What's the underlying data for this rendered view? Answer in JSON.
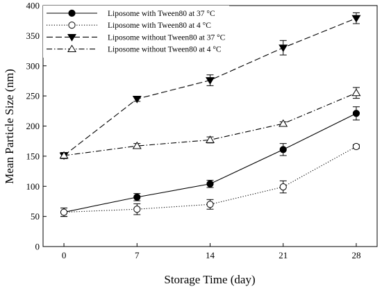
{
  "chart_data": {
    "type": "line",
    "xlabel": "Storage Time (day)",
    "ylabel": "Mean Particle Size (nm)",
    "xlim": [
      -2,
      30
    ],
    "ylim": [
      0,
      400
    ],
    "x_ticks": [
      0,
      7,
      14,
      21,
      28
    ],
    "y_ticks": [
      0,
      50,
      100,
      150,
      200,
      250,
      300,
      350,
      400
    ],
    "legend_position": "top-left",
    "grid": false,
    "series": [
      {
        "name": "Liposome with Tween80 at 37 °C",
        "marker": "filled-circle",
        "line_style": "solid",
        "x": [
          0,
          7,
          14,
          21,
          28
        ],
        "y": [
          57,
          82,
          104,
          161,
          221
        ],
        "error": [
          7,
          6,
          6,
          10,
          11
        ]
      },
      {
        "name": "Liposome with Tween80 at 4 °C",
        "marker": "open-circle",
        "line_style": "dotted",
        "x": [
          0,
          7,
          14,
          21,
          28
        ],
        "y": [
          57,
          62,
          70,
          99,
          166
        ],
        "error": [
          7,
          9,
          8,
          10,
          3
        ]
      },
      {
        "name": "Liposome without Tween80 at 37 °C",
        "marker": "filled-triangle-down",
        "line_style": "dashed",
        "x": [
          0,
          7,
          14,
          21,
          28
        ],
        "y": [
          151,
          245,
          276,
          330,
          379
        ],
        "error": [
          5,
          4,
          9,
          12,
          9
        ]
      },
      {
        "name": "Liposome without Tween80 at 4 °C",
        "marker": "open-triangle-up",
        "line_style": "dash-dot",
        "x": [
          0,
          7,
          14,
          21,
          28
        ],
        "y": [
          151,
          167,
          177,
          204,
          255
        ],
        "error": [
          5,
          4,
          5,
          3,
          9
        ]
      }
    ]
  }
}
